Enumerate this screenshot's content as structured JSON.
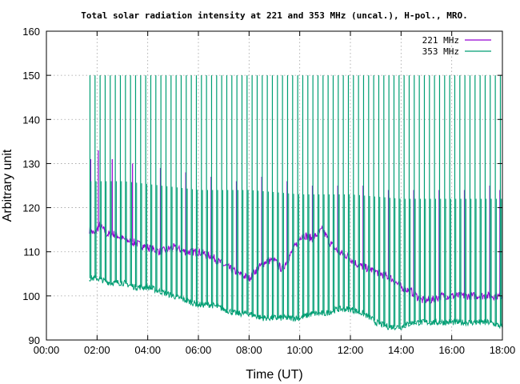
{
  "chart_data": {
    "type": "line",
    "title": "Total solar radiation intensity at 221 and 353 MHz (uncal.), H-pol., MRO.",
    "xlabel": "Time (UT)",
    "ylabel": "Arbitrary unit",
    "xlim": [
      0,
      18
    ],
    "ylim": [
      90,
      160
    ],
    "x_ticks": [
      "00:00",
      "02:00",
      "04:00",
      "06:00",
      "08:00",
      "10:00",
      "12:00",
      "14:00",
      "16:00",
      "18:00"
    ],
    "x_tick_values": [
      0,
      2,
      4,
      6,
      8,
      10,
      12,
      14,
      16,
      18
    ],
    "y_ticks": [
      "90",
      "100",
      "110",
      "120",
      "130",
      "140",
      "150",
      "160"
    ],
    "y_tick_values": [
      90,
      100,
      110,
      120,
      130,
      140,
      150,
      160
    ],
    "grid": true,
    "legend_position": "top-right",
    "series": [
      {
        "name": "221 MHz",
        "color": "#9400d3",
        "baseline": [
          [
            1.7,
            115
          ],
          [
            1.9,
            114
          ],
          [
            2.1,
            116
          ],
          [
            2.4,
            114
          ],
          [
            2.7,
            114
          ],
          [
            3.0,
            113
          ],
          [
            3.5,
            112
          ],
          [
            4.0,
            111
          ],
          [
            4.5,
            110
          ],
          [
            5.0,
            111
          ],
          [
            5.5,
            110
          ],
          [
            6.0,
            110
          ],
          [
            6.5,
            109
          ],
          [
            7.0,
            107
          ],
          [
            7.3,
            106
          ],
          [
            7.6,
            105
          ],
          [
            8.0,
            104
          ],
          [
            8.3,
            106
          ],
          [
            8.7,
            108
          ],
          [
            9.0,
            108
          ],
          [
            9.3,
            106
          ],
          [
            9.7,
            110
          ],
          [
            10.1,
            114
          ],
          [
            10.5,
            113
          ],
          [
            10.9,
            115
          ],
          [
            11.2,
            112
          ],
          [
            11.5,
            110
          ],
          [
            11.9,
            109
          ],
          [
            12.3,
            107
          ],
          [
            12.8,
            106
          ],
          [
            13.2,
            105
          ],
          [
            13.6,
            104
          ],
          [
            14.0,
            102
          ],
          [
            14.4,
            101
          ],
          [
            14.8,
            99
          ],
          [
            15.2,
            99
          ],
          [
            15.6,
            100
          ],
          [
            16.0,
            100
          ],
          [
            16.5,
            100
          ],
          [
            17.0,
            100
          ],
          [
            17.5,
            100
          ],
          [
            18.0,
            100
          ]
        ],
        "spike_peaks": [
          [
            1.75,
            131
          ],
          [
            2.05,
            133
          ],
          [
            2.6,
            131
          ],
          [
            3.4,
            130
          ],
          [
            4.5,
            129
          ],
          [
            5.5,
            128
          ],
          [
            6.5,
            127
          ],
          [
            7.5,
            126
          ],
          [
            8.5,
            127
          ],
          [
            9.5,
            126
          ],
          [
            10.5,
            125
          ],
          [
            11.5,
            125
          ],
          [
            12.5,
            125
          ],
          [
            13.5,
            124
          ],
          [
            14.5,
            124
          ],
          [
            15.5,
            124
          ],
          [
            16.5,
            124
          ],
          [
            17.5,
            125
          ],
          [
            17.9,
            124
          ]
        ]
      },
      {
        "name": "353 MHz",
        "color": "#009e73",
        "baseline": [
          [
            1.7,
            104
          ],
          [
            2.0,
            104
          ],
          [
            2.5,
            103
          ],
          [
            3.0,
            103
          ],
          [
            3.5,
            102
          ],
          [
            4.0,
            102
          ],
          [
            4.5,
            101
          ],
          [
            5.0,
            100
          ],
          [
            5.5,
            99
          ],
          [
            6.0,
            98
          ],
          [
            6.5,
            98
          ],
          [
            7.0,
            97
          ],
          [
            7.5,
            96
          ],
          [
            8.0,
            96
          ],
          [
            8.5,
            95
          ],
          [
            9.0,
            95
          ],
          [
            9.5,
            95
          ],
          [
            10.0,
            95
          ],
          [
            10.5,
            96
          ],
          [
            11.0,
            96
          ],
          [
            11.5,
            97
          ],
          [
            12.0,
            97
          ],
          [
            12.5,
            96
          ],
          [
            12.8,
            95
          ],
          [
            13.0,
            94
          ],
          [
            13.5,
            93
          ],
          [
            14.0,
            93
          ],
          [
            14.5,
            94
          ],
          [
            15.0,
            94
          ],
          [
            15.5,
            94
          ],
          [
            16.0,
            94
          ],
          [
            16.5,
            94
          ],
          [
            17.0,
            94
          ],
          [
            17.5,
            94
          ],
          [
            18.0,
            93
          ]
        ],
        "spike_peak": 150,
        "spike_shoulder": [
          [
            1.7,
            126
          ],
          [
            3.0,
            126
          ],
          [
            6.0,
            124
          ],
          [
            8.0,
            124
          ],
          [
            10.0,
            123
          ],
          [
            12.0,
            123
          ],
          [
            14.0,
            122
          ],
          [
            16.0,
            122
          ],
          [
            18.0,
            122
          ]
        ],
        "spike_start": 1.72,
        "spike_end": 17.95,
        "spike_interval": 0.2
      }
    ]
  }
}
